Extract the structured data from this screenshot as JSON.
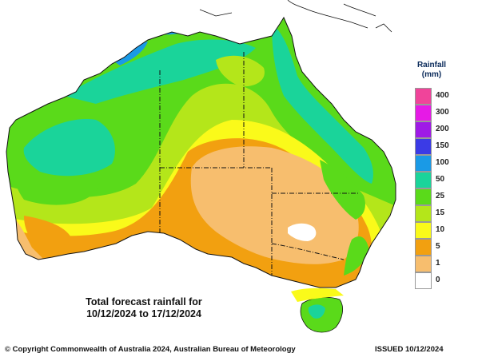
{
  "legend": {
    "title_line1": "Rainfall",
    "title_line2": "(mm)",
    "items": [
      {
        "label": "400",
        "color": "#f0449a"
      },
      {
        "label": "300",
        "color": "#e61ae6"
      },
      {
        "label": "200",
        "color": "#9f1ae6"
      },
      {
        "label": "150",
        "color": "#3b3be6"
      },
      {
        "label": "100",
        "color": "#1a9ae6"
      },
      {
        "label": "50",
        "color": "#1ad49a"
      },
      {
        "label": "25",
        "color": "#5ada1a"
      },
      {
        "label": "15",
        "color": "#b4e61a"
      },
      {
        "label": "10",
        "color": "#fafa1a"
      },
      {
        "label": "5",
        "color": "#f2a010"
      },
      {
        "label": "1",
        "color": "#f7be6e"
      },
      {
        "label": "0",
        "color": "#ffffff"
      }
    ]
  },
  "caption": {
    "line1": "Total forecast rainfall for",
    "line2": "10/12/2024 to 17/12/2024"
  },
  "footer": {
    "copyright": "© Copyright Commonwealth of Australia 2024, Australian Bureau of Meteorology",
    "issued": "ISSUED 10/12/2024"
  }
}
